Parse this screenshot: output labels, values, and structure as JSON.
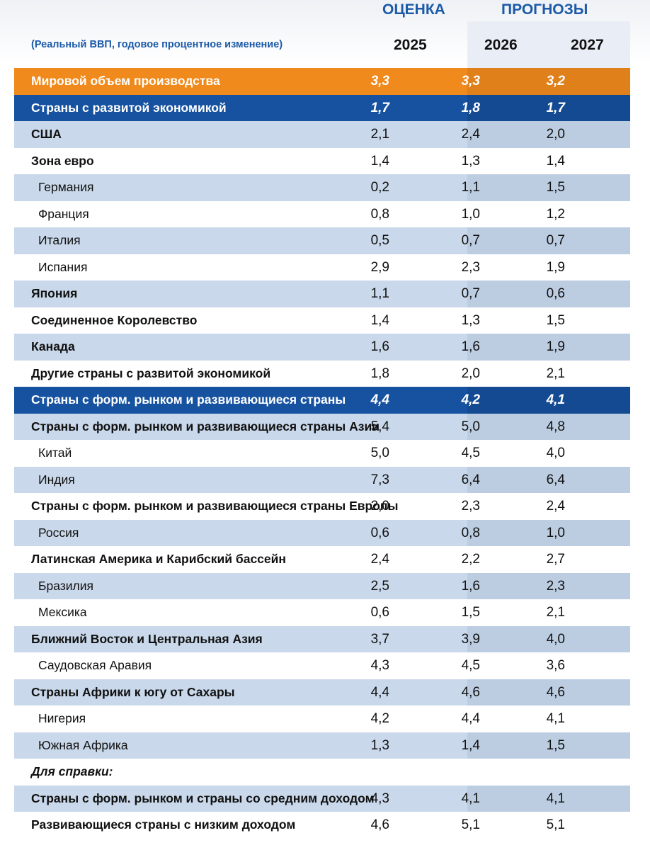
{
  "header": {
    "estimate_label": "ОЦЕНКА",
    "forecast_label": "ПРОГНОЗЫ",
    "subtitle": "(Реальный ВВП, годовое процентное изменение)",
    "years": [
      "2025",
      "2026",
      "2027"
    ]
  },
  "table": {
    "rows": [
      {
        "label": "Мировой объем производства",
        "values": [
          "3,3",
          "3,3",
          "3,2"
        ]
      },
      {
        "label": "Страны с развитой экономикой",
        "values": [
          "1,7",
          "1,8",
          "1,7"
        ]
      },
      {
        "label": "США",
        "values": [
          "2,1",
          "2,4",
          "2,0"
        ]
      },
      {
        "label": "Зона евро",
        "values": [
          "1,4",
          "1,3",
          "1,4"
        ]
      },
      {
        "label": "Германия",
        "values": [
          "0,2",
          "1,1",
          "1,5"
        ]
      },
      {
        "label": "Франция",
        "values": [
          "0,8",
          "1,0",
          "1,2"
        ]
      },
      {
        "label": "Италия",
        "values": [
          "0,5",
          "0,7",
          "0,7"
        ]
      },
      {
        "label": "Испания",
        "values": [
          "2,9",
          "2,3",
          "1,9"
        ]
      },
      {
        "label": "Япония",
        "values": [
          "1,1",
          "0,7",
          "0,6"
        ]
      },
      {
        "label": "Соединенное Королевство",
        "values": [
          "1,4",
          "1,3",
          "1,5"
        ]
      },
      {
        "label": "Канада",
        "values": [
          "1,6",
          "1,6",
          "1,9"
        ]
      },
      {
        "label": "Другие страны с развитой экономикой",
        "values": [
          "1,8",
          "2,0",
          "2,1"
        ]
      },
      {
        "label": "Страны с форм. рынком и развивающиеся страны",
        "values": [
          "4,4",
          "4,2",
          "4,1"
        ]
      },
      {
        "label": "Страны с форм. рынком и развивающиеся страны Азии",
        "values": [
          "5,4",
          "5,0",
          "4,8"
        ]
      },
      {
        "label": "Китай",
        "values": [
          "5,0",
          "4,5",
          "4,0"
        ]
      },
      {
        "label": "Индия",
        "values": [
          "7,3",
          "6,4",
          "6,4"
        ]
      },
      {
        "label": "Страны с форм. рынком и развивающиеся страны Европы",
        "values": [
          "2,0",
          "2,3",
          "2,4"
        ]
      },
      {
        "label": "Россия",
        "values": [
          "0,6",
          "0,8",
          "1,0"
        ]
      },
      {
        "label": "Латинская Америка и Карибский бассейн",
        "values": [
          "2,4",
          "2,2",
          "2,7"
        ]
      },
      {
        "label": "Бразилия",
        "values": [
          "2,5",
          "1,6",
          "2,3"
        ]
      },
      {
        "label": "Мексика",
        "values": [
          "0,6",
          "1,5",
          "2,1"
        ]
      },
      {
        "label": "Ближний Восток и Центральная Азия",
        "values": [
          "3,7",
          "3,9",
          "4,0"
        ]
      },
      {
        "label": "Саудовская Аравия",
        "values": [
          "4,3",
          "4,5",
          "3,6"
        ]
      },
      {
        "label": "Страны Африки к югу от Сахары",
        "values": [
          "4,4",
          "4,6",
          "4,6"
        ]
      },
      {
        "label": "Нигерия",
        "values": [
          "4,2",
          "4,4",
          "4,1"
        ]
      },
      {
        "label": "Южная Африка",
        "values": [
          "1,3",
          "1,4",
          "1,5"
        ]
      },
      {
        "label": "Для справки:"
      },
      {
        "label": "Страны с форм. рынком и страны со средним доходом",
        "values": [
          "4,3",
          "4,1",
          "4,1"
        ]
      },
      {
        "label": "Развивающиеся страны с низким доходом",
        "values": [
          "4,6",
          "5,1",
          "5,1"
        ]
      }
    ]
  }
}
